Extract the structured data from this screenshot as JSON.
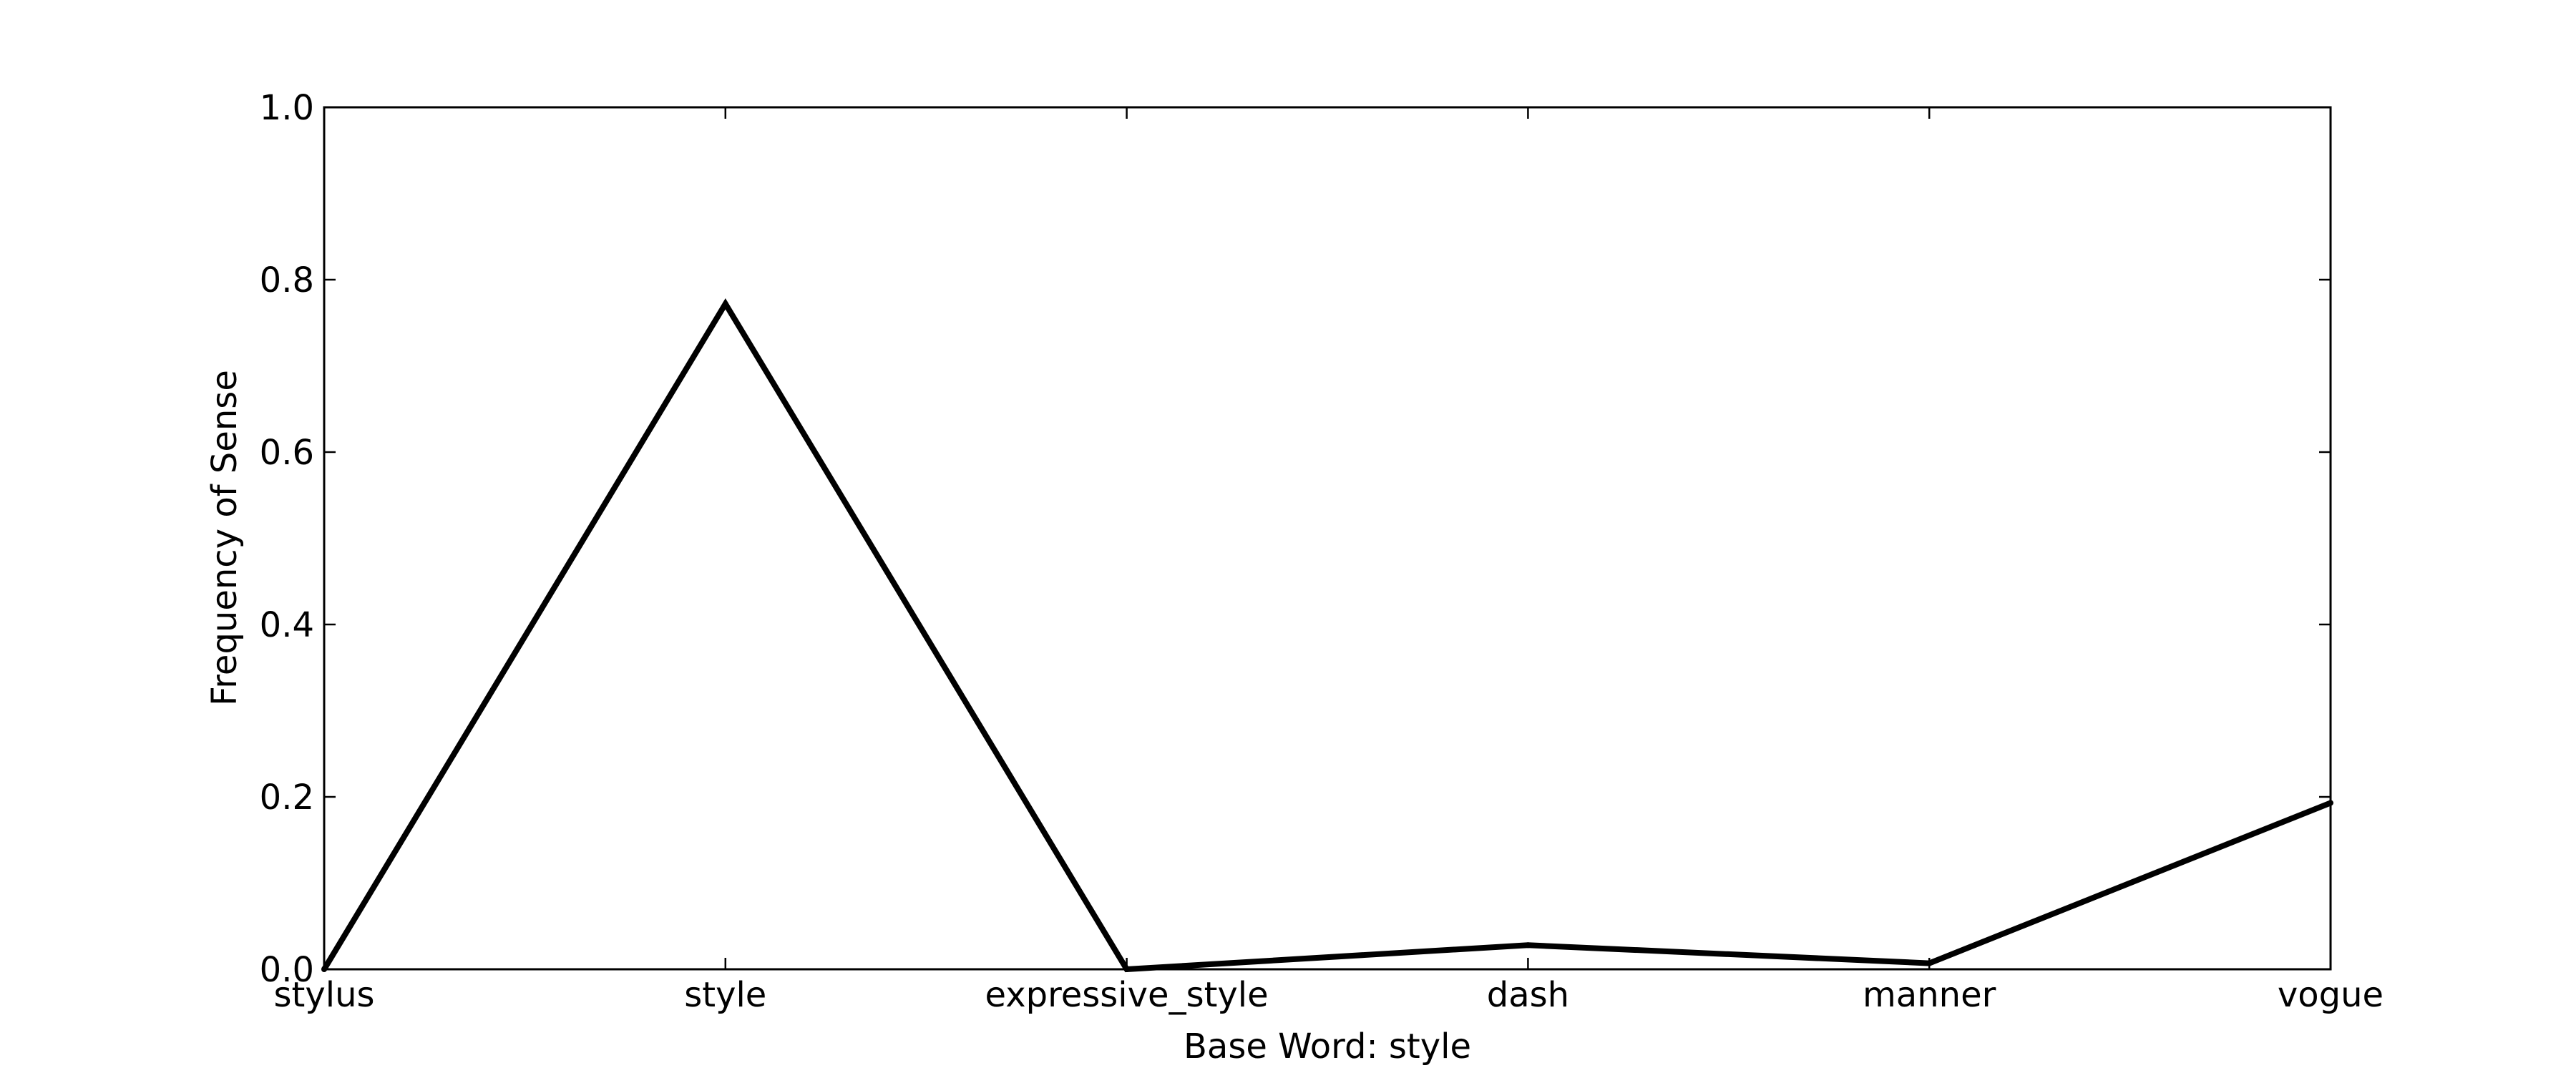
{
  "chart_data": {
    "type": "line",
    "title": "",
    "xlabel": "Base Word: style",
    "ylabel": "Frequency of Sense",
    "categories": [
      "stylus",
      "style",
      "expressive_style",
      "dash",
      "manner",
      "vogue"
    ],
    "values": [
      0.0,
      0.772,
      0.0,
      0.028,
      0.007,
      0.193
    ],
    "ylim": [
      0,
      1.0
    ],
    "yticks": [
      "0.0",
      "0.2",
      "0.4",
      "0.6",
      "0.8",
      "1.0"
    ],
    "grid": false,
    "legend": "none",
    "line_color": "#000000"
  }
}
